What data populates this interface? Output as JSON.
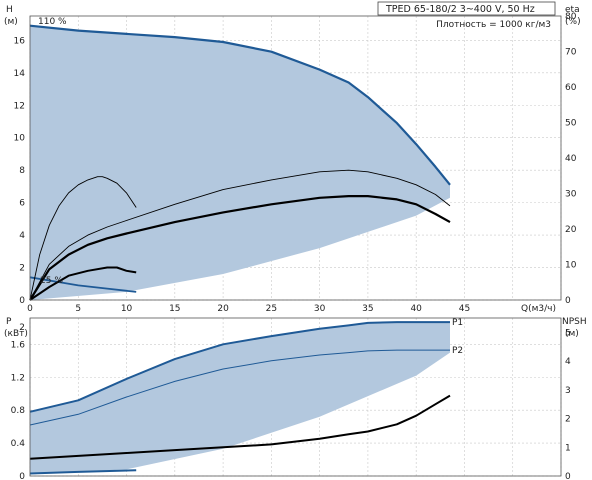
{
  "chart_data": [
    {
      "type": "line",
      "title": "TPED 65-180/2    3~400 V, 50 Hz",
      "subtitle": "Плотность = 1000 кг/м3",
      "xlabel": "Q(м3/ч)",
      "ylabel_left": "H",
      "ylabel_left_unit": "(м)",
      "ylabel_right": "eta",
      "ylabel_right_unit": "(%)",
      "xlim": [
        0,
        55
      ],
      "ylim_left": [
        0,
        17.5
      ],
      "ylim_right": [
        0,
        80
      ],
      "x_ticks": [
        "0",
        "5",
        "10",
        "15",
        "20",
        "25",
        "30",
        "35",
        "40",
        "45"
      ],
      "y_ticks_left": [
        "0",
        "2",
        "4",
        "6",
        "8",
        "10",
        "12",
        "14",
        "16"
      ],
      "y_ticks_right": [
        "0",
        "10",
        "20",
        "30",
        "40",
        "50",
        "60",
        "70",
        "80"
      ],
      "annotations": [
        "110 %",
        "25 %"
      ],
      "grid": true,
      "operating_area": {
        "upper_Q": [
          0,
          5,
          10,
          15,
          20,
          25,
          30,
          33,
          35,
          38,
          40,
          42,
          43.5
        ],
        "upper_H": [
          16.9,
          16.6,
          16.4,
          16.2,
          15.9,
          15.3,
          14.2,
          13.4,
          12.5,
          10.9,
          9.6,
          8.2,
          7.1
        ],
        "lower_Q": [
          0,
          10,
          20,
          30,
          40,
          43.5
        ],
        "lower_H": [
          0,
          0.5,
          1.6,
          3.2,
          5.2,
          6.3
        ]
      },
      "series": [
        {
          "axis": "left",
          "x": [
            0,
            5,
            10,
            15,
            20,
            25,
            30,
            33,
            35,
            38,
            40,
            42,
            43.5
          ],
          "y": [
            16.9,
            16.6,
            16.4,
            16.2,
            15.9,
            15.3,
            14.2,
            13.4,
            12.5,
            10.9,
            9.6,
            8.2,
            7.1
          ]
        },
        {
          "axis": "left",
          "x": [
            0,
            3,
            5,
            8,
            11
          ],
          "y": [
            1.4,
            1.1,
            0.9,
            0.7,
            0.5
          ]
        },
        {
          "axis": "left",
          "x": [
            0,
            2,
            4,
            6,
            8,
            10,
            15,
            20,
            25,
            30,
            33,
            35,
            38,
            40,
            42,
            43.5
          ],
          "y": [
            0,
            1.9,
            2.8,
            3.4,
            3.8,
            4.1,
            4.8,
            5.4,
            5.9,
            6.3,
            6.4,
            6.4,
            6.2,
            5.9,
            5.3,
            4.8
          ]
        },
        {
          "axis": "left",
          "x": [
            0,
            1,
            2,
            3,
            4,
            5,
            6,
            7,
            7.5,
            8,
            9,
            10,
            11
          ],
          "y": [
            0,
            2.8,
            4.6,
            5.8,
            6.6,
            7.1,
            7.4,
            7.6,
            7.6,
            7.5,
            7.2,
            6.6,
            5.7
          ]
        },
        {
          "axis": "left",
          "x": [
            0,
            2,
            4,
            6,
            8,
            10,
            15,
            20,
            25,
            30,
            33,
            35,
            38,
            40,
            42,
            43.5
          ],
          "y": [
            0,
            2.2,
            3.3,
            4.0,
            4.5,
            4.9,
            5.9,
            6.8,
            7.4,
            7.9,
            8.0,
            7.9,
            7.5,
            7.1,
            6.5,
            5.8
          ]
        },
        {
          "axis": "left",
          "x": [
            0,
            2,
            4,
            6,
            8,
            9,
            10,
            11
          ],
          "y": [
            0,
            0.8,
            1.5,
            1.8,
            2.0,
            2.0,
            1.8,
            1.7
          ]
        }
      ]
    },
    {
      "type": "line",
      "xlabel": "",
      "ylabel_left": "P",
      "ylabel_left_unit": "(кВт)",
      "ylabel_right": "NPSH",
      "ylabel_right_unit": "(м)",
      "xlim": [
        0,
        55
      ],
      "ylim_left": [
        0,
        1.92
      ],
      "ylim_right": [
        0,
        5.5
      ],
      "y_ticks_left": [
        "0",
        "0.4",
        "0.8",
        "1.2",
        "1.6",
        "2"
      ],
      "y_ticks_right": [
        "0",
        "1",
        "2",
        "3",
        "4",
        "5"
      ],
      "grid": true,
      "operating_area": {
        "upper_Q": [
          0,
          5,
          10,
          15,
          20,
          25,
          30,
          33,
          35,
          40,
          43.5
        ],
        "upper_P": [
          0.78,
          0.92,
          1.18,
          1.42,
          1.6,
          1.7,
          1.79,
          1.83,
          1.86,
          1.87,
          1.87
        ],
        "lower_Q": [
          0,
          10,
          20,
          30,
          40,
          43.5
        ],
        "lower_P": [
          0.02,
          0.08,
          0.33,
          0.72,
          1.22,
          1.5
        ]
      },
      "series": [
        {
          "name": "P1",
          "axis": "left",
          "x": [
            0,
            5,
            10,
            15,
            20,
            25,
            30,
            33,
            35,
            38,
            40,
            43.5
          ],
          "y": [
            0.78,
            0.92,
            1.18,
            1.42,
            1.6,
            1.7,
            1.79,
            1.83,
            1.86,
            1.87,
            1.87,
            1.87
          ]
        },
        {
          "name": "P2",
          "axis": "left",
          "x": [
            0,
            5,
            10,
            15,
            20,
            25,
            30,
            33,
            35,
            38,
            40,
            43.5
          ],
          "y": [
            0.62,
            0.75,
            0.96,
            1.15,
            1.3,
            1.4,
            1.47,
            1.5,
            1.52,
            1.53,
            1.53,
            1.53
          ]
        },
        {
          "axis": "right",
          "x": [
            0,
            5,
            10,
            15,
            20,
            25,
            30,
            33,
            35,
            38,
            40,
            42,
            43.5
          ],
          "y": [
            0.6,
            0.7,
            0.8,
            0.9,
            1.0,
            1.1,
            1.3,
            1.45,
            1.55,
            1.8,
            2.1,
            2.5,
            2.8
          ]
        },
        {
          "axis": "left",
          "x": [
            0,
            5,
            11
          ],
          "y": [
            0.03,
            0.05,
            0.07
          ]
        }
      ]
    }
  ],
  "colors": {
    "area": "#b3c8de",
    "border": "#1f5a96",
    "curve": "#000000",
    "grid": "#c9c9c9"
  }
}
